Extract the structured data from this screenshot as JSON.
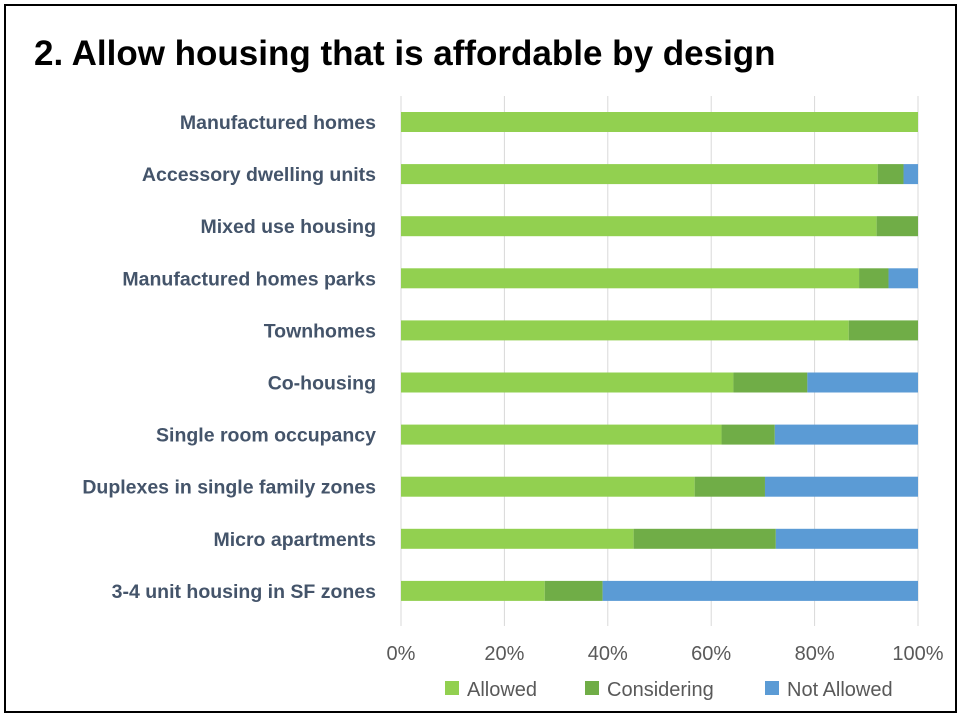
{
  "title": "2. Allow housing that is affordable by design",
  "chart_data": {
    "type": "bar",
    "orientation": "horizontal",
    "stacked": true,
    "percent_stacked": true,
    "title": "2. Allow housing that is affordable by design",
    "categories": [
      "Manufactured homes",
      "Accessory dwelling units",
      "Mixed use housing",
      "Manufactured homes parks",
      "Townhomes",
      "Co-housing",
      "Single room occupancy",
      "Duplexes in single family zones",
      "Micro apartments",
      "3-4 unit housing in SF zones"
    ],
    "series": [
      {
        "name": "Allowed",
        "color": "#92d050",
        "values": [
          100,
          92.2,
          92.0,
          88.6,
          86.6,
          64.3,
          62.0,
          56.8,
          45.0,
          27.8
        ]
      },
      {
        "name": "Considering",
        "color": "#70ad47",
        "values": [
          0,
          5.0,
          8.0,
          5.7,
          13.4,
          14.3,
          10.3,
          13.6,
          27.5,
          11.2
        ]
      },
      {
        "name": "Not Allowed",
        "color": "#5b9bd5",
        "values": [
          0,
          2.8,
          0,
          5.7,
          0,
          21.4,
          27.7,
          29.6,
          27.5,
          61.0
        ]
      }
    ],
    "xlim": [
      0,
      100
    ],
    "x_ticks": [
      "0%",
      "20%",
      "40%",
      "60%",
      "80%",
      "100%"
    ],
    "x_tick_values": [
      0,
      20,
      40,
      60,
      80,
      100
    ],
    "grid": true,
    "legend_position": "bottom-right"
  }
}
